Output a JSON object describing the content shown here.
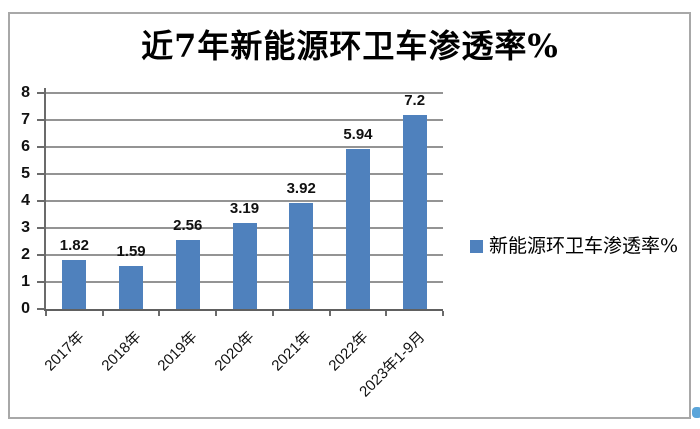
{
  "chart_data": {
    "type": "bar",
    "title": "近7年新能源环卫车渗透率%",
    "categories": [
      "2017年",
      "2018年",
      "2019年",
      "2020年",
      "2021年",
      "2022年",
      "2023年1-9月"
    ],
    "values": [
      1.82,
      1.59,
      2.56,
      3.19,
      3.92,
      5.94,
      7.2
    ],
    "value_labels": [
      "1.82",
      "1.59",
      "2.56",
      "3.19",
      "3.92",
      "5.94",
      "7.2"
    ],
    "series": [
      {
        "name": "新能源环卫车渗透率%",
        "values": [
          1.82,
          1.59,
          2.56,
          3.19,
          3.92,
          5.94,
          7.2
        ]
      }
    ],
    "xlabel": "",
    "ylabel": "",
    "ylim": [
      0,
      8
    ],
    "yticks": [
      "0",
      "1",
      "2",
      "3",
      "4",
      "5",
      "6",
      "7",
      "8"
    ],
    "grid": true,
    "legend": {
      "label": "新能源环卫车渗透率%",
      "position": "right"
    },
    "colors": {
      "bar": "#4f81bd",
      "legend_marker": "#4f81bd",
      "gridline": "#949494",
      "axis": "#6b6b6b",
      "frame_border": "#a8a8a8",
      "corner_dot": "#5ba5da"
    }
  }
}
